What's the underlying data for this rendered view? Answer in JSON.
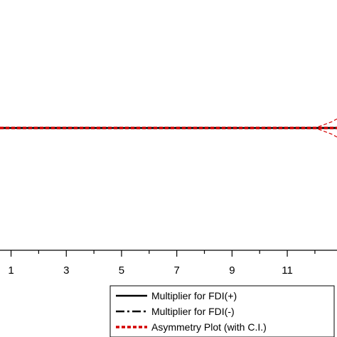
{
  "chart_data": {
    "type": "line",
    "x_tick_labels": [
      "1",
      "3",
      "5",
      "7",
      "9",
      "11"
    ],
    "x_major_ticks": [
      1,
      3,
      5,
      7,
      9,
      11
    ],
    "x_minor_ticks": [
      0,
      2,
      4,
      6,
      8,
      10,
      12
    ],
    "xlim": [
      0.6,
      12.8
    ],
    "ylim": [
      -1,
      1
    ],
    "x": [
      0.6,
      12,
      12.3,
      12.6,
      12.8
    ],
    "series": [
      {
        "name": "Multiplier for FDI(+)",
        "style": "solid",
        "color": "#000000",
        "values": [
          0,
          0,
          0,
          0,
          0
        ]
      },
      {
        "name": "Multiplier for FDI(-)",
        "style": "dashdot",
        "color": "#000000",
        "values": [
          0,
          0,
          0,
          0,
          0
        ]
      },
      {
        "name": "Asymmetry Plot (with C.I.)",
        "style": "dashed",
        "color": "#d40000",
        "values": [
          0,
          0,
          0,
          0,
          0
        ],
        "ci_upper": [
          0,
          0,
          0.025,
          0.05,
          0.075
        ],
        "ci_lower": [
          0,
          0,
          -0.025,
          -0.05,
          -0.075
        ]
      }
    ],
    "legend_position": "bottom-right",
    "grid": false
  }
}
